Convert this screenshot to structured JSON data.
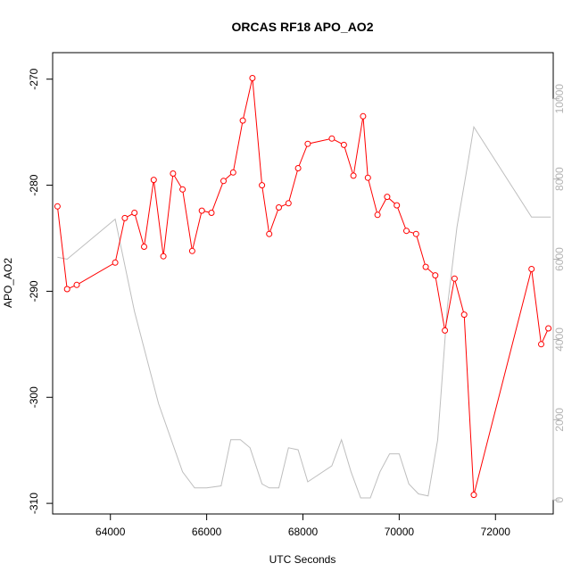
{
  "chart_data": {
    "type": "line",
    "title": "ORCAS RF18 APO_AO2",
    "xlabel": "UTC Seconds",
    "ylabel": "APO_AO2",
    "xlim": [
      62800,
      73200
    ],
    "ylim": [
      -311,
      -267.5
    ],
    "y2lim": [
      -350,
      11150
    ],
    "x_ticks": [
      64000,
      66000,
      68000,
      70000,
      72000
    ],
    "y_ticks": [
      -310,
      -300,
      -290,
      -280,
      -270
    ],
    "y2_ticks": [
      0,
      2000,
      4000,
      6000,
      8000,
      10000
    ],
    "x_tick_labels": [
      "64000",
      "66000",
      "68000",
      "70000",
      "72000"
    ],
    "y_tick_labels": [
      "-310",
      "-300",
      "-290",
      "-280",
      "-270"
    ],
    "y2_tick_labels": [
      "0",
      "2000",
      "4000",
      "6000",
      "8000",
      "10000"
    ],
    "colors": {
      "primary": "#ff0000",
      "secondary": "#bebebe",
      "axis": "#000000",
      "secondary_axis": "#b3b3b3"
    },
    "series": [
      {
        "axis": "left",
        "style": "line-with-circles",
        "x": [
          62900,
          63100,
          63300,
          64100,
          64300,
          64500,
          64700,
          64900,
          65100,
          65300,
          65500,
          65700,
          65900,
          66100,
          66350,
          66550,
          66750,
          66950,
          67150,
          67300,
          67500,
          67700,
          67900,
          68100,
          68600,
          68850,
          69050,
          69250,
          69350,
          69550,
          69750,
          69950,
          70150,
          70350,
          70550,
          70750,
          70950,
          71150,
          71350,
          71550,
          72750,
          72950,
          73100
        ],
        "y": [
          -282.0,
          -289.8,
          -289.4,
          -287.3,
          -283.1,
          -282.6,
          -285.8,
          -279.5,
          -286.7,
          -278.9,
          -280.4,
          -286.2,
          -282.4,
          -282.6,
          -279.6,
          -278.8,
          -273.9,
          -269.9,
          -280.0,
          -284.6,
          -282.1,
          -281.7,
          -278.4,
          -276.1,
          -275.6,
          -276.2,
          -279.1,
          -273.5,
          -279.3,
          -282.8,
          -281.1,
          -281.9,
          -284.3,
          -284.6,
          -287.7,
          -288.5,
          -293.7,
          -288.8,
          -292.2,
          -309.2,
          -287.9,
          -295.0,
          -293.5
        ]
      },
      {
        "axis": "right",
        "style": "line",
        "x": [
          62900,
          63100,
          64100,
          64500,
          65000,
          65500,
          65750,
          66000,
          66300,
          66500,
          66700,
          66900,
          67150,
          67300,
          67500,
          67700,
          67900,
          68100,
          68600,
          68800,
          69000,
          69200,
          69400,
          69600,
          69800,
          70000,
          70200,
          70400,
          70600,
          70800,
          71000,
          71200,
          71400,
          71550,
          72750,
          73150
        ],
        "y": [
          6050,
          6000,
          7000,
          4700,
          2400,
          700,
          300,
          300,
          350,
          1500,
          1500,
          1300,
          400,
          300,
          300,
          1300,
          1250,
          450,
          850,
          1500,
          700,
          50,
          50,
          700,
          1150,
          1150,
          400,
          150,
          100,
          1500,
          4800,
          6800,
          8200,
          9300,
          7050,
          7050
        ]
      }
    ]
  }
}
